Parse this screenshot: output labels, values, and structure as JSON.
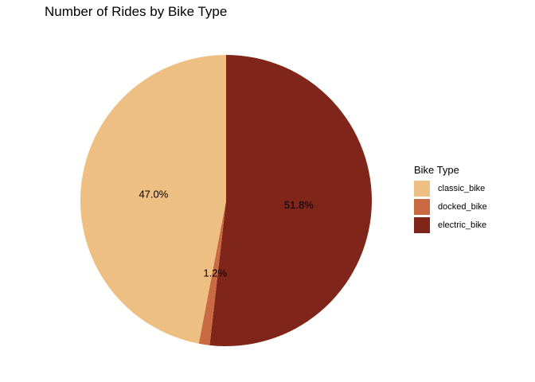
{
  "chart_data": {
    "type": "pie",
    "title": "Number of Rides by Bike Type",
    "legend_title": "Bike Type",
    "legend_position": "right",
    "categories": [
      "classic_bike",
      "docked_bike",
      "electric_bike"
    ],
    "values": [
      47.0,
      1.2,
      51.8
    ],
    "labels": [
      "47.0%",
      "1.2%",
      "51.8%"
    ],
    "colors": [
      "#EDBF82",
      "#C96A43",
      "#80251A"
    ]
  }
}
